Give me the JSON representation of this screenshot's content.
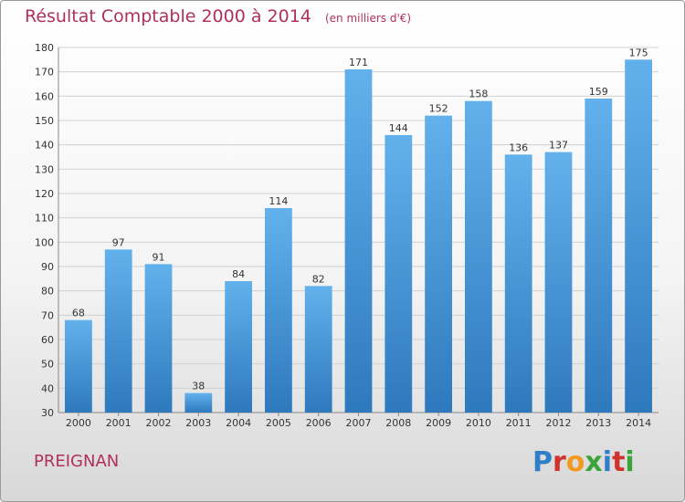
{
  "header": {
    "title": "Résultat Comptable 2000 à 2014",
    "subtitle": "(en milliers d'€)"
  },
  "footer": {
    "commune": "PREIGNAN",
    "logo_text": "Proxiti",
    "logo_colors": [
      "#2f7fc8",
      "#d2322d",
      "#f29a1f",
      "#3aa43a",
      "#2f7fc8",
      "#d2322d",
      "#3aa43a"
    ]
  },
  "colors": {
    "bar_top": "#62b1ec",
    "bar_bottom": "#2e79bd",
    "grid": "#d0d0d0",
    "axis_text": "#333333",
    "title": "#b0305a"
  },
  "chart_data": {
    "type": "bar",
    "categories": [
      "2000",
      "2001",
      "2002",
      "2003",
      "2004",
      "2005",
      "2006",
      "2007",
      "2008",
      "2009",
      "2010",
      "2011",
      "2012",
      "2013",
      "2014"
    ],
    "values": [
      68,
      97,
      91,
      38,
      84,
      114,
      82,
      171,
      144,
      152,
      158,
      136,
      137,
      159,
      175
    ],
    "ylim": [
      30,
      180
    ],
    "yticks": [
      30,
      40,
      50,
      60,
      70,
      80,
      90,
      100,
      110,
      120,
      130,
      140,
      150,
      160,
      170,
      180
    ],
    "grid": true,
    "title": "Résultat Comptable 2000 à 2014",
    "xlabel": "",
    "ylabel": ""
  }
}
